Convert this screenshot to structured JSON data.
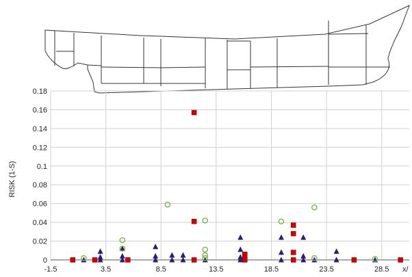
{
  "chart_data": {
    "type": "scatter",
    "title": "",
    "xlabel": "x/",
    "ylabel": "RISK (1-S)",
    "xlim": [
      -1.5,
      31
    ],
    "ylim": [
      0,
      0.18
    ],
    "x_ticks": [
      "-1.5",
      "3.5",
      "8.5",
      "13.5",
      "18.5",
      "23.5",
      "28.5"
    ],
    "y_ticks": [
      "0",
      "0.02",
      "0.04",
      "0.06",
      "0.08",
      "0.1",
      "0.12",
      "0.14",
      "0.16",
      "0.18"
    ],
    "grid": true,
    "legend": "none",
    "colors": {
      "square": "#d40000",
      "triangle": "#2e1a7a",
      "circle": "#7ab648",
      "grid": "#d0d0d0",
      "axis": "#555555",
      "outline": "#333333"
    },
    "series": [
      {
        "marker": "square",
        "points": [
          [
            0.5,
            0
          ],
          [
            2.5,
            0
          ],
          [
            5.5,
            0
          ],
          [
            11.5,
            0.157
          ],
          [
            11.5,
            0.041
          ],
          [
            11.5,
            0
          ],
          [
            16.1,
            0.006
          ],
          [
            16.1,
            0.003
          ],
          [
            16.1,
            0
          ],
          [
            20.5,
            0.037
          ],
          [
            20.5,
            0.028
          ],
          [
            20.5,
            0.008
          ],
          [
            20.5,
            0
          ],
          [
            26,
            0
          ],
          [
            30.2,
            0
          ]
        ]
      },
      {
        "marker": "triangle",
        "points": [
          [
            1.5,
            0
          ],
          [
            3,
            0.009
          ],
          [
            3,
            0.003
          ],
          [
            3,
            0
          ],
          [
            5,
            0.012
          ],
          [
            5,
            0.004
          ],
          [
            5,
            0
          ],
          [
            8,
            0.014
          ],
          [
            8,
            0.004
          ],
          [
            8,
            0
          ],
          [
            9.5,
            0.005
          ],
          [
            9.5,
            0
          ],
          [
            10.5,
            0.005
          ],
          [
            10.5,
            0
          ],
          [
            12.5,
            0
          ],
          [
            15.7,
            0.024
          ],
          [
            15.7,
            0.011
          ],
          [
            15.7,
            0.003
          ],
          [
            15.7,
            0
          ],
          [
            19.4,
            0.024
          ],
          [
            19.4,
            0.008
          ],
          [
            19.4,
            0
          ],
          [
            21.4,
            0.024
          ],
          [
            21.4,
            0.004
          ],
          [
            21.4,
            0
          ],
          [
            22.4,
            0
          ],
          [
            24.4,
            0.009
          ],
          [
            24.4,
            0
          ],
          [
            27.9,
            0
          ]
        ]
      },
      {
        "marker": "circle",
        "points": [
          [
            1.5,
            0.002
          ],
          [
            5,
            0.021
          ],
          [
            5,
            0.012
          ],
          [
            9.1,
            0.059
          ],
          [
            12.5,
            0.042
          ],
          [
            12.5,
            0.011
          ],
          [
            12.5,
            0.005
          ],
          [
            12.5,
            0.002
          ],
          [
            19.4,
            0.041
          ],
          [
            22.4,
            0.056
          ],
          [
            22.4,
            0.002
          ],
          [
            27.9,
            0.001
          ]
        ]
      }
    ]
  },
  "ship_outline": {
    "icon": "ship-hull-profile-icon"
  }
}
